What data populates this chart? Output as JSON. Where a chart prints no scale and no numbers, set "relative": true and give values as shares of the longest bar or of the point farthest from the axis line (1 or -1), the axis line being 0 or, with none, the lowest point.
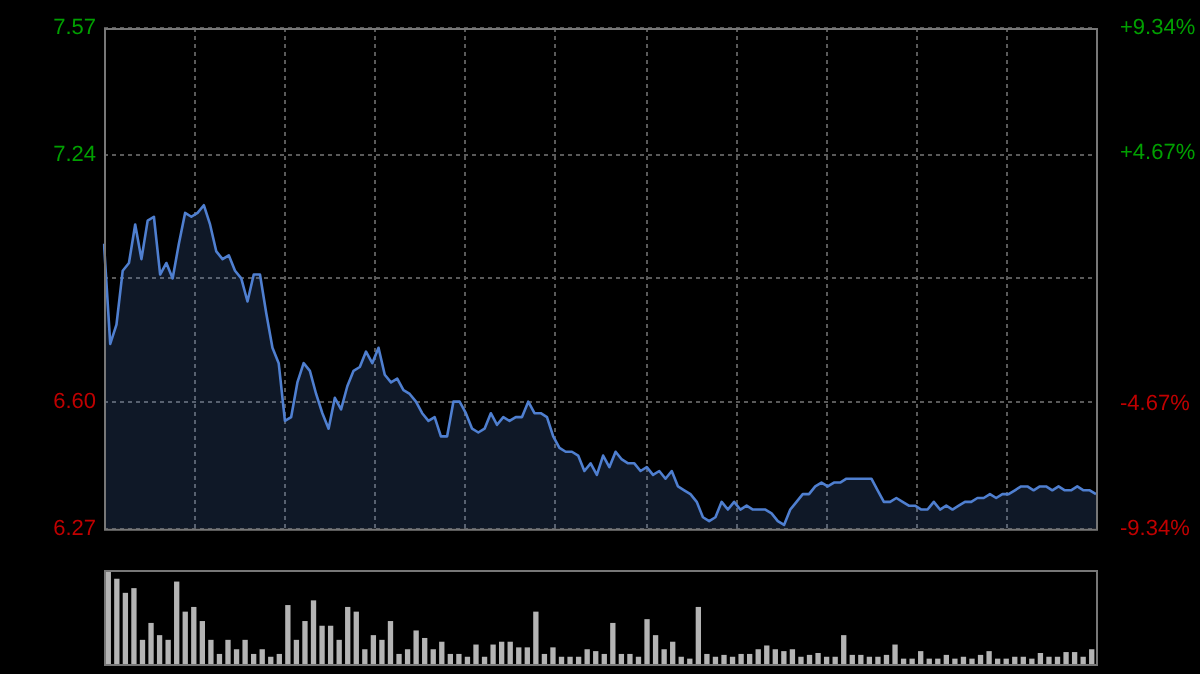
{
  "chart_data": [
    {
      "type": "area",
      "categories": [
        null,
        null,
        null,
        null,
        null,
        null,
        null,
        null,
        null,
        null,
        null,
        null,
        null,
        null,
        null,
        null,
        null,
        null,
        null,
        null,
        null,
        null,
        null,
        null,
        null,
        null,
        null,
        null,
        null,
        null,
        null,
        null,
        null,
        null,
        null,
        null,
        null,
        null,
        null,
        null,
        null,
        null,
        null,
        null,
        null,
        null,
        null,
        null,
        null,
        null,
        null,
        null,
        null,
        null,
        null,
        null,
        null,
        null,
        null,
        null,
        null,
        null,
        null,
        null,
        null,
        null,
        null,
        null,
        null,
        null,
        null,
        null,
        null,
        null,
        null,
        null,
        null,
        null,
        null,
        null,
        null,
        null,
        null,
        null,
        null,
        null,
        null,
        null,
        null,
        null,
        null,
        null,
        null,
        null,
        null,
        null,
        null,
        null,
        null,
        null,
        null,
        null,
        null,
        null,
        null,
        null,
        null,
        null,
        null,
        null,
        null,
        null,
        null,
        null,
        null,
        null,
        null,
        null,
        null,
        null,
        null,
        null,
        null,
        null,
        null,
        null,
        null,
        null,
        null,
        null,
        null,
        null,
        null,
        null,
        null,
        null,
        null,
        null,
        null,
        null,
        null,
        null,
        null,
        null,
        null,
        null,
        null,
        null,
        null,
        null,
        null,
        null,
        null,
        null,
        null,
        null,
        null,
        null,
        null,
        null
      ],
      "series": [
        {
          "color": "#4f7fd0",
          "values": [
            7.01,
            6.75,
            6.8,
            6.94,
            6.96,
            7.06,
            6.97,
            7.07,
            7.08,
            6.93,
            6.96,
            6.92,
            7.01,
            7.09,
            7.08,
            7.09,
            7.11,
            7.06,
            6.99,
            6.97,
            6.98,
            6.94,
            6.92,
            6.86,
            6.93,
            6.93,
            6.83,
            6.74,
            6.7,
            6.55,
            6.56,
            6.65,
            6.7,
            6.68,
            6.62,
            6.57,
            6.53,
            6.61,
            6.58,
            6.64,
            6.68,
            6.69,
            6.73,
            6.7,
            6.74,
            6.67,
            6.65,
            6.66,
            6.63,
            6.62,
            6.6,
            6.57,
            6.55,
            6.56,
            6.51,
            6.51,
            6.6,
            6.6,
            6.57,
            6.53,
            6.52,
            6.53,
            6.57,
            6.54,
            6.56,
            6.55,
            6.56,
            6.56,
            6.6,
            6.57,
            6.57,
            6.56,
            6.51,
            6.48,
            6.47,
            6.47,
            6.46,
            6.42,
            6.44,
            6.41,
            6.46,
            6.43,
            6.47,
            6.45,
            6.44,
            6.44,
            6.42,
            6.43,
            6.41,
            6.42,
            6.4,
            6.42,
            6.38,
            6.37,
            6.36,
            6.34,
            6.3,
            6.29,
            6.3,
            6.34,
            6.32,
            6.34,
            6.32,
            6.33,
            6.32,
            6.32,
            6.32,
            6.31,
            6.29,
            6.28,
            6.32,
            6.34,
            6.36,
            6.36,
            6.38,
            6.39,
            6.38,
            6.39,
            6.39,
            6.4,
            6.4,
            6.4,
            6.4,
            6.4,
            6.37,
            6.34,
            6.34,
            6.35,
            6.34,
            6.33,
            6.33,
            6.32,
            6.32,
            6.34,
            6.32,
            6.33,
            6.32,
            6.33,
            6.34,
            6.34,
            6.35,
            6.35,
            6.36,
            6.35,
            6.36,
            6.36,
            6.37,
            6.38,
            6.38,
            6.37,
            6.38,
            6.38,
            6.37,
            6.38,
            6.37,
            6.37,
            6.38,
            6.37,
            6.37,
            6.36
          ]
        }
      ],
      "ylim": [
        6.27,
        7.57
      ],
      "yticks": [
        6.27,
        {
          "value": 6.6,
          "label": "6.60"
        },
        {
          "value": 6.92,
          "label": null
        },
        7.24,
        7.57
      ],
      "y2lim": [
        -9.34,
        9.34
      ],
      "y2ticks": [
        {
          "value": -9.34,
          "label": "-9.34%"
        },
        {
          "value": -4.67,
          "label": "-4.67%"
        },
        {
          "value": 0,
          "label": null
        },
        {
          "value": 4.67,
          "label": "+4.67%"
        },
        {
          "value": 9.34,
          "label": "+9.34%"
        }
      ],
      "grid": true,
      "tick_labels": "y",
      "marker": "none",
      "legend": false
    },
    {
      "type": "bar",
      "relative": true,
      "color": "#b4b4b4",
      "legend": false,
      "categories": [
        null,
        null,
        null,
        null,
        null,
        null,
        null,
        null,
        null,
        null,
        null,
        null,
        null,
        null,
        null,
        null,
        null,
        null,
        null,
        null,
        null,
        null,
        null,
        null,
        null,
        null,
        null,
        null,
        null,
        null,
        null,
        null,
        null,
        null,
        null,
        null,
        null,
        null,
        null,
        null,
        null,
        null,
        null,
        null,
        null,
        null,
        null,
        null,
        null,
        null,
        null,
        null,
        null,
        null,
        null,
        null,
        null,
        null,
        null,
        null,
        null,
        null,
        null,
        null,
        null,
        null,
        null,
        null,
        null,
        null,
        null,
        null,
        null,
        null,
        null,
        null,
        null,
        null,
        null,
        null,
        null,
        null,
        null,
        null,
        null,
        null,
        null,
        null,
        null,
        null,
        null,
        null,
        null,
        null,
        null,
        null,
        null,
        null,
        null,
        null,
        null,
        null,
        null,
        null,
        null,
        null,
        null,
        null,
        null,
        null,
        null,
        null,
        null,
        null,
        null,
        null
      ],
      "values": [
        1.0,
        0.9,
        0.75,
        0.8,
        0.25,
        0.43,
        0.3,
        0.25,
        0.87,
        0.55,
        0.6,
        0.45,
        0.25,
        0.1,
        0.25,
        0.15,
        0.25,
        0.1,
        0.15,
        0.07,
        0.1,
        0.62,
        0.25,
        0.45,
        0.67,
        0.4,
        0.4,
        0.25,
        0.6,
        0.55,
        0.15,
        0.3,
        0.25,
        0.45,
        0.1,
        0.15,
        0.35,
        0.27,
        0.15,
        0.23,
        0.1,
        0.1,
        0.07,
        0.2,
        0.07,
        0.2,
        0.23,
        0.23,
        0.17,
        0.17,
        0.55,
        0.1,
        0.17,
        0.07,
        0.07,
        0.07,
        0.15,
        0.13,
        0.1,
        0.43,
        0.1,
        0.1,
        0.07,
        0.47,
        0.3,
        0.15,
        0.23,
        0.07,
        0.05,
        0.6,
        0.1,
        0.07,
        0.09,
        0.07,
        0.1,
        0.1,
        0.15,
        0.19,
        0.15,
        0.13,
        0.15,
        0.07,
        0.09,
        0.11,
        0.07,
        0.07,
        0.3,
        0.09,
        0.09,
        0.07,
        0.07,
        0.09,
        0.2,
        0.05,
        0.05,
        0.13,
        0.05,
        0.05,
        0.09,
        0.05,
        0.07,
        0.05,
        0.09,
        0.13,
        0.05,
        0.05,
        0.07,
        0.07,
        0.05,
        0.11,
        0.07,
        0.07,
        0.12,
        0.12,
        0.07,
        0.15
      ]
    }
  ]
}
